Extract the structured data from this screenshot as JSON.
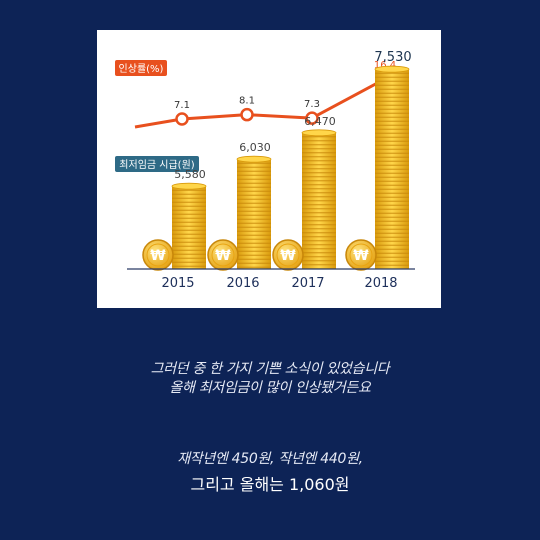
{
  "chart_data": [
    {
      "type": "line",
      "legend": "인상률(%)",
      "categories": [
        "2015",
        "2016",
        "2017",
        "2018"
      ],
      "values": [
        7.1,
        8.1,
        7.3,
        16.4
      ],
      "color": "#e8501e"
    },
    {
      "type": "bar",
      "legend": "최저임금 시급(원)",
      "categories": [
        "2015",
        "2016",
        "2017",
        "2018"
      ],
      "values": [
        5580,
        6030,
        6470,
        7530
      ],
      "value_labels": [
        "5,580",
        "6,030",
        "6,470",
        "7,530"
      ],
      "coin_symbol": "₩",
      "color": "#f4b41a"
    }
  ],
  "colors": {
    "background": "#0d2356",
    "line": "#e8501e",
    "legend_bar": "#2e6a86",
    "coin": "#f4b41a"
  },
  "captions": {
    "line1": "그러던 중 한 가지 기쁜 소식이 있었습니다",
    "line2": "올해 최저임금이 많이 인상됐거든요",
    "line3": "재작년엔 450원, 작년엔 440원,",
    "line4": "그리고 올해는 1,060원"
  }
}
